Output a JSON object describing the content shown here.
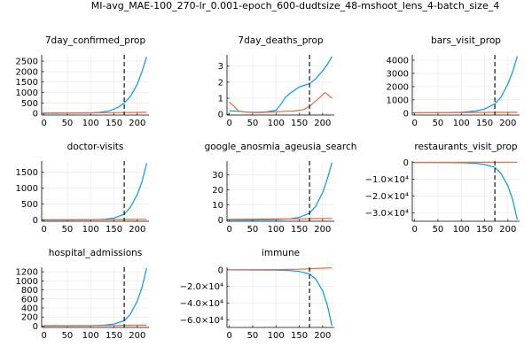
{
  "figure": {
    "suptitle": "MI-avg_MAE-100_270-lr_0.001-epoch_600-dudtsize_48-mshoot_lens_4-batch_size_4"
  },
  "colors": {
    "series_blue": "#009AFA",
    "series_orange": "#E26F46",
    "vline": "#000000",
    "grid": "#E6E6E6",
    "axis": "#000000"
  },
  "chart_data": [
    {
      "type": "line",
      "title": "7day_confirmed_prop",
      "x_ticks": [
        0,
        50,
        100,
        150,
        200
      ],
      "y_ticks": [
        0,
        500,
        1000,
        1500,
        2000,
        2500
      ],
      "y_tick_labels": [
        "0",
        "500",
        "1000",
        "1500",
        "2000",
        "2500"
      ],
      "xlim": [
        -5,
        225
      ],
      "ylim": [
        -80,
        2800
      ],
      "vline_x": 172,
      "series": [
        {
          "color": "blue",
          "x": [
            0,
            25,
            50,
            75,
            100,
            120,
            140,
            160,
            172,
            185,
            200,
            210,
            220
          ],
          "y": [
            5,
            5,
            8,
            12,
            20,
            50,
            120,
            300,
            500,
            800,
            1400,
            2000,
            2700
          ]
        },
        {
          "color": "orange",
          "x": [
            0,
            50,
            100,
            150,
            172,
            200,
            220
          ],
          "y": [
            20,
            20,
            25,
            35,
            40,
            45,
            50
          ]
        }
      ]
    },
    {
      "type": "line",
      "title": "7day_deaths_prop",
      "x_ticks": [
        0,
        50,
        100,
        150,
        200
      ],
      "y_ticks": [
        0,
        1,
        2,
        3
      ],
      "y_tick_labels": [
        "0",
        "1",
        "2",
        "3"
      ],
      "xlim": [
        -5,
        225
      ],
      "ylim": [
        -0.05,
        3.7
      ],
      "vline_x": 172,
      "series": [
        {
          "color": "blue",
          "x": [
            0,
            20,
            40,
            60,
            80,
            100,
            110,
            120,
            130,
            140,
            150,
            160,
            172,
            185,
            200,
            210,
            220
          ],
          "y": [
            0.22,
            0.18,
            0.12,
            0.12,
            0.15,
            0.25,
            0.6,
            1.05,
            1.3,
            1.5,
            1.7,
            1.8,
            1.9,
            2.2,
            2.7,
            3.1,
            3.6
          ]
        },
        {
          "color": "orange",
          "x": [
            0,
            10,
            20,
            40,
            60,
            80,
            100,
            120,
            140,
            160,
            172,
            180,
            190,
            200,
            205,
            210,
            220
          ],
          "y": [
            0.75,
            0.5,
            0.2,
            0.12,
            0.1,
            0.12,
            0.15,
            0.18,
            0.2,
            0.3,
            0.5,
            0.7,
            0.95,
            1.2,
            1.35,
            1.25,
            1.0
          ]
        }
      ]
    },
    {
      "type": "line",
      "title": "bars_visit_prop",
      "x_ticks": [
        0,
        50,
        100,
        150,
        200
      ],
      "y_ticks": [
        0,
        1000,
        2000,
        3000,
        4000
      ],
      "y_tick_labels": [
        "0",
        "1000",
        "2000",
        "3000",
        "4000"
      ],
      "xlim": [
        -5,
        225
      ],
      "ylim": [
        -150,
        4400
      ],
      "vline_x": 172,
      "series": [
        {
          "color": "blue",
          "x": [
            0,
            50,
            100,
            130,
            150,
            172,
            185,
            200,
            210,
            220
          ],
          "y": [
            20,
            30,
            60,
            150,
            300,
            700,
            1200,
            2200,
            3100,
            4300
          ]
        },
        {
          "color": "orange",
          "x": [
            0,
            50,
            100,
            150,
            172,
            200,
            220
          ],
          "y": [
            20,
            30,
            40,
            50,
            55,
            60,
            60
          ]
        }
      ]
    },
    {
      "type": "line",
      "title": "doctor-visits",
      "x_ticks": [
        0,
        50,
        100,
        150,
        200
      ],
      "y_ticks": [
        0,
        500,
        1000,
        1500
      ],
      "y_tick_labels": [
        "0",
        "500",
        "1000",
        "1500"
      ],
      "xlim": [
        -5,
        225
      ],
      "ylim": [
        -40,
        1850
      ],
      "vline_x": 172,
      "series": [
        {
          "color": "blue",
          "x": [
            0,
            50,
            100,
            130,
            150,
            172,
            185,
            200,
            210,
            220
          ],
          "y": [
            2,
            3,
            8,
            25,
            60,
            180,
            400,
            800,
            1200,
            1780
          ]
        },
        {
          "color": "orange",
          "x": [
            0,
            50,
            100,
            150,
            172,
            200,
            220
          ],
          "y": [
            10,
            10,
            12,
            15,
            18,
            20,
            22
          ]
        }
      ]
    },
    {
      "type": "line",
      "title": "google_anosmia_ageusia_search",
      "x_ticks": [
        0,
        50,
        100,
        150,
        200
      ],
      "y_ticks": [
        0,
        10,
        20,
        30
      ],
      "y_tick_labels": [
        "0",
        "10",
        "20",
        "30"
      ],
      "xlim": [
        -5,
        225
      ],
      "ylim": [
        -0.8,
        39
      ],
      "vline_x": 172,
      "series": [
        {
          "color": "blue",
          "x": [
            0,
            50,
            100,
            130,
            150,
            172,
            185,
            200,
            210,
            220
          ],
          "y": [
            0.1,
            0.1,
            0.3,
            0.8,
            1.8,
            4.5,
            9,
            18,
            27,
            38
          ]
        },
        {
          "color": "orange",
          "x": [
            0,
            50,
            100,
            150,
            172,
            200,
            220
          ],
          "y": [
            0.5,
            0.6,
            0.7,
            0.8,
            0.9,
            1.0,
            1.0
          ]
        }
      ]
    },
    {
      "type": "line",
      "title": "restaurants_visit_prop",
      "x_ticks": [
        0,
        50,
        100,
        150,
        200
      ],
      "y_ticks": [
        0,
        -10000,
        -20000,
        -30000
      ],
      "y_tick_labels": [
        "0",
        "−1.0×10⁴",
        "−2.0×10⁴",
        "−3.0×10⁴"
      ],
      "xlim": [
        -5,
        225
      ],
      "ylim": [
        -35000,
        800
      ],
      "vline_x": 172,
      "series": [
        {
          "color": "blue",
          "x": [
            0,
            50,
            100,
            130,
            150,
            172,
            185,
            200,
            210,
            220
          ],
          "y": [
            -50,
            -80,
            -200,
            -500,
            -1200,
            -3000,
            -6500,
            -14000,
            -22000,
            -34000
          ]
        },
        {
          "color": "orange",
          "x": [
            0,
            50,
            100,
            150,
            172,
            200,
            220
          ],
          "y": [
            0,
            30,
            60,
            80,
            100,
            110,
            120
          ]
        }
      ]
    },
    {
      "type": "line",
      "title": "hospital_admissions",
      "x_ticks": [
        0,
        50,
        100,
        150,
        200
      ],
      "y_ticks": [
        0,
        200,
        400,
        600,
        800,
        1000,
        1200
      ],
      "y_tick_labels": [
        "0",
        "200",
        "400",
        "600",
        "800",
        "1000",
        "1200"
      ],
      "xlim": [
        -5,
        225
      ],
      "ylim": [
        -30,
        1300
      ],
      "vline_x": 172,
      "series": [
        {
          "color": "blue",
          "x": [
            0,
            50,
            100,
            130,
            150,
            172,
            185,
            200,
            210,
            220
          ],
          "y": [
            2,
            3,
            8,
            20,
            45,
            120,
            260,
            550,
            850,
            1280
          ]
        },
        {
          "color": "orange",
          "x": [
            0,
            50,
            100,
            150,
            172,
            200,
            220
          ],
          "y": [
            10,
            10,
            12,
            14,
            16,
            18,
            20
          ]
        }
      ]
    },
    {
      "type": "line",
      "title": "immune",
      "x_ticks": [
        0,
        50,
        100,
        150,
        200
      ],
      "y_ticks": [
        0,
        -20000,
        -40000,
        -60000
      ],
      "y_tick_labels": [
        "0",
        "−2.0×10⁴",
        "−4.0×10⁴",
        "−6.0×10⁴"
      ],
      "xlim": [
        -5,
        225
      ],
      "ylim": [
        -69000,
        3000
      ],
      "vline_x": 172,
      "series": [
        {
          "color": "blue",
          "x": [
            0,
            50,
            100,
            130,
            150,
            172,
            185,
            200,
            210,
            220
          ],
          "y": [
            -100,
            -150,
            -400,
            -900,
            -2000,
            -5000,
            -11000,
            -25000,
            -42000,
            -67000
          ]
        },
        {
          "color": "orange",
          "x": [
            0,
            50,
            100,
            150,
            172,
            200,
            220
          ],
          "y": [
            0,
            100,
            300,
            700,
            1200,
            1900,
            2500
          ]
        }
      ]
    }
  ]
}
